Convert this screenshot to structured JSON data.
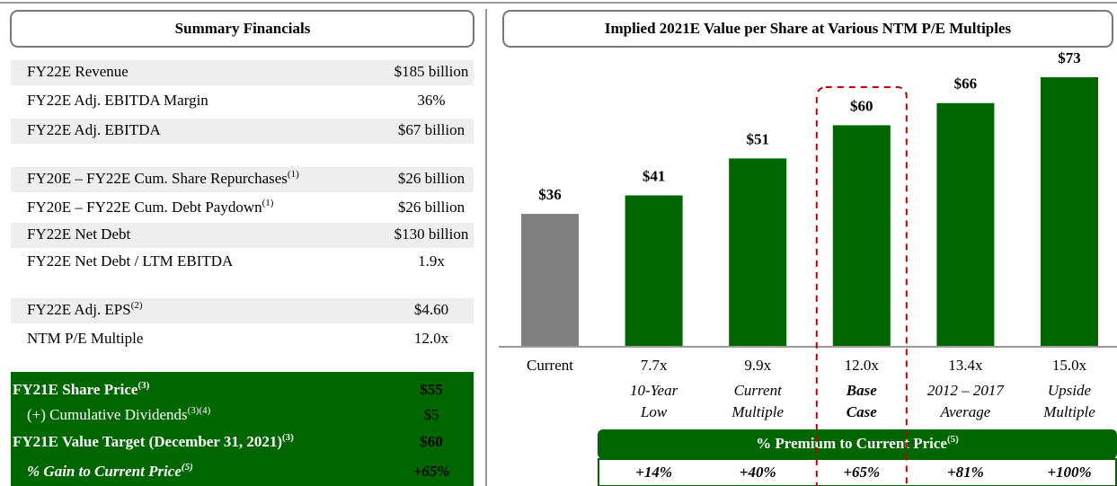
{
  "summary": {
    "title": "Summary Financials",
    "rows": [
      {
        "label": "FY22E Revenue",
        "value": "$185 billion"
      },
      {
        "label": "FY22E Adj. EBITDA Margin",
        "value": "36%"
      },
      {
        "label": "FY22E Adj. EBITDA",
        "value": "$67 billion"
      },
      {
        "label": "FY20E – FY22E Cum. Share Repurchases",
        "note": "(1)",
        "value": "$26 billion"
      },
      {
        "label": "FY20E – FY22E Cum. Debt Paydown",
        "note": "(1)",
        "value": "$26 billion"
      },
      {
        "label": "FY22E Net Debt",
        "value": "$130 billion"
      },
      {
        "label": "FY22E Net Debt / LTM EBITDA",
        "value": "1.9x"
      },
      {
        "label": "FY22E Adj. EPS",
        "note": "(2)",
        "value": "$4.60"
      },
      {
        "label": "NTM P/E Multiple",
        "value": "12.0x"
      }
    ],
    "total_rows": [
      {
        "label": "FY21E Share Price",
        "note": "(3)",
        "value": "$55"
      },
      {
        "label": "(+) Cumulative Dividends",
        "note": "(3)(4)",
        "value": "$5"
      },
      {
        "label": "FY21E Value Target (December 31, 2021)",
        "note": "(3)",
        "value": "$60"
      },
      {
        "label": "% Gain to Current Price",
        "note": "(5)",
        "value": "+65%"
      }
    ]
  },
  "chart_data": {
    "type": "bar",
    "title": "Implied 2021E Value per Share at Various NTM P/E Multiples",
    "categories": [
      "Current",
      "7.7x",
      "9.9x",
      "12.0x",
      "13.4x",
      "15.0x"
    ],
    "values": [
      36,
      41,
      51,
      60,
      66,
      73
    ],
    "value_labels": [
      "$36",
      "$41",
      "$51",
      "$60",
      "$66",
      "$73"
    ],
    "colors": [
      "#808080",
      "#006600",
      "#006600",
      "#006600",
      "#006600",
      "#006600"
    ],
    "captions": [
      null,
      [
        "10-Year",
        "Low"
      ],
      [
        "Current",
        "Multiple"
      ],
      [
        "Base",
        "Case"
      ],
      [
        "2012 – 2017",
        "Average"
      ],
      [
        "Upside",
        "Multiple"
      ]
    ],
    "highlight": 3,
    "premium": {
      "title": "% Premium to Current Price",
      "note": "(5)",
      "values": [
        "+14%",
        "+40%",
        "+65%",
        "+81%",
        "+100%"
      ]
    }
  }
}
